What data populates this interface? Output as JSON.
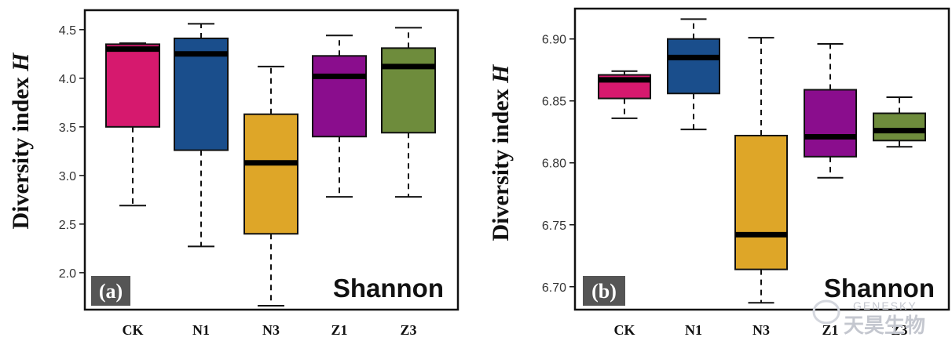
{
  "figure": {
    "watermark": {
      "brand_latin": "GENESKY",
      "brand_cjk": "天昊生物"
    }
  },
  "chart_data": [
    {
      "type": "box",
      "panel_tag": "(a)",
      "index_name": "Shannon",
      "ylabel_main": "Diversity index ",
      "ylabel_var": "H",
      "categories": [
        "CK",
        "N1",
        "N3",
        "Z1",
        "Z3"
      ],
      "yticks": [
        "2.0",
        "2.5",
        "3.0",
        "3.5",
        "4.0",
        "4.5"
      ],
      "ylim": [
        1.62,
        4.7
      ],
      "grid": false,
      "boxes": [
        {
          "category": "CK",
          "whisker_low": 2.69,
          "q1": 3.5,
          "median": 4.3,
          "q3": 4.35,
          "whisker_high": 4.36,
          "color": "#d6196e"
        },
        {
          "category": "N1",
          "whisker_low": 2.27,
          "q1": 3.26,
          "median": 4.25,
          "q3": 4.41,
          "whisker_high": 4.56,
          "color": "#1a4e8c"
        },
        {
          "category": "N3",
          "whisker_low": 1.66,
          "q1": 2.4,
          "median": 3.13,
          "q3": 3.63,
          "whisker_high": 4.12,
          "color": "#dea628"
        },
        {
          "category": "Z1",
          "whisker_low": 2.78,
          "q1": 3.4,
          "median": 4.02,
          "q3": 4.23,
          "whisker_high": 4.44,
          "color": "#8a0d8d"
        },
        {
          "category": "Z3",
          "whisker_low": 2.78,
          "q1": 3.44,
          "median": 4.12,
          "q3": 4.31,
          "whisker_high": 4.52,
          "color": "#6e8c3c"
        }
      ]
    },
    {
      "type": "box",
      "panel_tag": "(b)",
      "index_name": "Shannon",
      "ylabel_main": "Diversity index ",
      "ylabel_var": "H",
      "categories": [
        "CK",
        "N1",
        "N3",
        "Z1",
        "Z3"
      ],
      "yticks": [
        "6.70",
        "6.75",
        "6.80",
        "6.85",
        "6.90"
      ],
      "ylim": [
        6.6815,
        6.9245
      ],
      "grid": false,
      "boxes": [
        {
          "category": "CK",
          "whisker_low": 6.836,
          "q1": 6.852,
          "median": 6.867,
          "q3": 6.871,
          "whisker_high": 6.874,
          "color": "#d6196e"
        },
        {
          "category": "N1",
          "whisker_low": 6.827,
          "q1": 6.856,
          "median": 6.885,
          "q3": 6.9,
          "whisker_high": 6.916,
          "color": "#1a4e8c"
        },
        {
          "category": "N3",
          "whisker_low": 6.687,
          "q1": 6.714,
          "median": 6.742,
          "q3": 6.822,
          "whisker_high": 6.901,
          "color": "#dea628"
        },
        {
          "category": "Z1",
          "whisker_low": 6.788,
          "q1": 6.805,
          "median": 6.821,
          "q3": 6.859,
          "whisker_high": 6.896,
          "color": "#8a0d8d"
        },
        {
          "category": "Z3",
          "whisker_low": 6.813,
          "q1": 6.818,
          "median": 6.826,
          "q3": 6.84,
          "whisker_high": 6.853,
          "color": "#6e8c3c"
        }
      ]
    }
  ]
}
